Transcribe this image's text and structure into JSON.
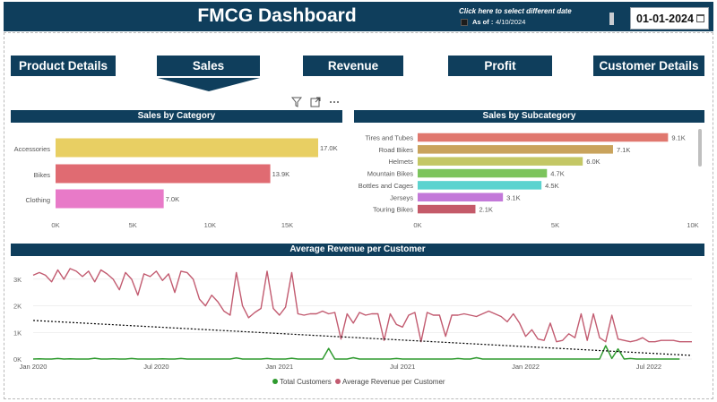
{
  "header": {
    "title": "FMCG Dashboard",
    "date_hint": "Click here to select different date",
    "as_of_label": "As of :",
    "as_of_value": "4/10/2024",
    "date_value": "01-01-2024",
    "color": "#0f3e5c"
  },
  "nav": {
    "tabs": [
      {
        "label": "Product Details",
        "selected": false
      },
      {
        "label": "Sales",
        "selected": true
      },
      {
        "label": "Revenue",
        "selected": false
      },
      {
        "label": "Profit",
        "selected": false
      },
      {
        "label": "Customer Details",
        "selected": false
      }
    ]
  },
  "toolbar": {
    "icons": [
      "filter-icon",
      "focus-mode-icon",
      "more-options-icon"
    ]
  },
  "chart_data": [
    {
      "type": "bar",
      "orientation": "horizontal",
      "title": "Sales by Category",
      "categories": [
        "Accessories",
        "Bikes",
        "Clothing"
      ],
      "values": [
        17000,
        13900,
        7000
      ],
      "data_labels": [
        "17.0K",
        "13.9K",
        "7.0K"
      ],
      "colors": [
        "#e8cf63",
        "#e06b72",
        "#e87ac8"
      ],
      "xticks": [
        "0K",
        "5K",
        "10K",
        "15K"
      ],
      "xlim": [
        0,
        17000
      ]
    },
    {
      "type": "bar",
      "orientation": "horizontal",
      "title": "Sales by Subcategory",
      "categories": [
        "Tires and Tubes",
        "Road Bikes",
        "Helmets",
        "Mountain Bikes",
        "Bottles and Cages",
        "Jerseys",
        "Touring Bikes"
      ],
      "values": [
        9100,
        7100,
        6000,
        4700,
        4500,
        3100,
        2100
      ],
      "data_labels": [
        "9.1K",
        "7.1K",
        "6.0K",
        "4.7K",
        "4.5K",
        "3.1K",
        "2.1K"
      ],
      "colors": [
        "#e0776e",
        "#c9a35c",
        "#c4c765",
        "#7cc45c",
        "#5cd3cf",
        "#c378d9",
        "#c45a69"
      ],
      "xticks": [
        "0K",
        "5K",
        "10K"
      ],
      "xlim": [
        0,
        10000
      ]
    },
    {
      "type": "line",
      "title": "Average Revenue per Customer",
      "xticks": [
        "Jan 2020",
        "Jul 2020",
        "Jan 2021",
        "Jul 2021",
        "Jan 2022",
        "Jul 2022"
      ],
      "yticks": [
        "0K",
        "1K",
        "2K",
        "3K"
      ],
      "ylim": [
        0,
        3500
      ],
      "legend_position": "bottom",
      "x_months": [
        0,
        0.3,
        0.6,
        0.9,
        1.2,
        1.5,
        1.8,
        2.1,
        2.4,
        2.7,
        3.0,
        3.3,
        3.6,
        3.9,
        4.2,
        4.5,
        4.8,
        5.1,
        5.4,
        5.7,
        6.0,
        6.3,
        6.6,
        6.9,
        7.2,
        7.5,
        7.8,
        8.1,
        8.4,
        8.7,
        9.0,
        9.3,
        9.6,
        9.9,
        10.2,
        10.5,
        10.8,
        11.1,
        11.4,
        11.7,
        12.0,
        12.3,
        12.6,
        12.9,
        13.2,
        13.5,
        13.8,
        14.1,
        14.4,
        14.7,
        15.0,
        15.3,
        15.6,
        15.9,
        16.2,
        16.5,
        16.8,
        17.1,
        17.4,
        17.7,
        18.0,
        18.3,
        18.6,
        18.9,
        19.2,
        19.5,
        19.8,
        20.1,
        20.4,
        20.7,
        21.0,
        21.3,
        21.6,
        21.9,
        22.2,
        22.5,
        22.8,
        23.1,
        23.4,
        23.7,
        24.0,
        24.3,
        24.6,
        24.9,
        25.2,
        25.5,
        25.8,
        26.1,
        26.4,
        26.7,
        27.0,
        27.3,
        27.6,
        27.9,
        28.2,
        28.5,
        28.8,
        29.1,
        29.4,
        29.7,
        30.0,
        30.3,
        30.6,
        30.9,
        31.2,
        31.5,
        31.8,
        32.1
      ],
      "series": [
        {
          "name": "Total Customers",
          "color": "#2e9a2e",
          "values": [
            0,
            10,
            0,
            0,
            20,
            0,
            10,
            0,
            0,
            0,
            30,
            0,
            0,
            10,
            0,
            0,
            20,
            0,
            0,
            0,
            0,
            10,
            0,
            0,
            20,
            0,
            0,
            0,
            0,
            0,
            0,
            0,
            0,
            40,
            0,
            0,
            0,
            0,
            20,
            0,
            0,
            0,
            30,
            0,
            0,
            0,
            0,
            0,
            400,
            0,
            0,
            0,
            50,
            0,
            0,
            0,
            0,
            0,
            0,
            20,
            0,
            0,
            0,
            0,
            0,
            0,
            0,
            0,
            0,
            20,
            0,
            0,
            50,
            0,
            0,
            0,
            0,
            0,
            0,
            0,
            0,
            0,
            0,
            0,
            0,
            0,
            0,
            0,
            0,
            0,
            0,
            0,
            0,
            500,
            20,
            380,
            0,
            20,
            0,
            0,
            0,
            0,
            0,
            0,
            0,
            0
          ]
        },
        {
          "name": "Average Revenue per Customer",
          "color": "#c25b70",
          "values": [
            3150,
            3250,
            3150,
            2900,
            3350,
            3000,
            3400,
            3300,
            3100,
            3300,
            2900,
            3350,
            3200,
            3000,
            2600,
            3250,
            3000,
            2400,
            3200,
            3100,
            3300,
            2950,
            3200,
            2500,
            3300,
            3250,
            3000,
            2250,
            2000,
            2400,
            2150,
            1800,
            1650,
            3250,
            2000,
            1550,
            1750,
            1900,
            3300,
            1900,
            1650,
            1950,
            3250,
            1700,
            1650,
            1700,
            1700,
            1800,
            1700,
            1750,
            750,
            1700,
            1350,
            1750,
            1650,
            1700,
            1700,
            700,
            1700,
            1300,
            1200,
            1650,
            1750,
            650,
            1750,
            1650,
            1650,
            850,
            1650,
            1650,
            1700,
            1650,
            1600,
            1700,
            1800,
            1700,
            1600,
            1400,
            1700,
            1350,
            850,
            1100,
            750,
            700,
            1350,
            650,
            700,
            950,
            800,
            1700,
            700,
            1700,
            800,
            650,
            1650,
            750,
            700,
            650,
            700,
            800,
            650,
            650,
            700,
            700,
            700,
            650,
            650,
            650
          ]
        },
        {
          "name": "trend",
          "color": "#000000",
          "style": "dotted",
          "values": [
            1450,
            1370
          ]
        }
      ]
    }
  ]
}
